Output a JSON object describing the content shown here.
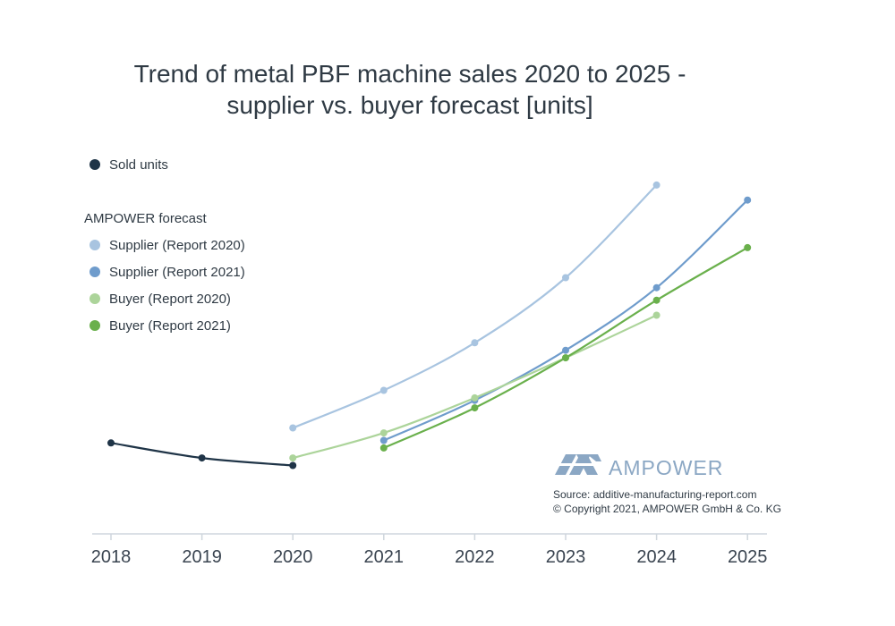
{
  "chart_data": {
    "type": "line",
    "title_lines": [
      "Trend of metal PBF machine sales 2020 to 2025 -",
      "supplier vs. buyer forecast [units]"
    ],
    "x": [
      "2018",
      "2019",
      "2020",
      "2021",
      "2022",
      "2023",
      "2024",
      "2025"
    ],
    "xlabel": "",
    "ylabel": "",
    "ylim": [
      0,
      100
    ],
    "grid": false,
    "legend_placement": "top-left",
    "legend_group_label": "AMPOWER forecast",
    "series": [
      {
        "name": "Sold units",
        "color": "#1f3447",
        "x": [
          "2018",
          "2019",
          "2020"
        ],
        "values": [
          24,
          18,
          15
        ]
      },
      {
        "name": "Supplier (Report 2020)",
        "color": "#a8c4e0",
        "x": [
          "2020",
          "2021",
          "2022",
          "2023",
          "2024"
        ],
        "values": [
          30,
          45,
          64,
          90,
          127
        ]
      },
      {
        "name": "Supplier (Report 2021)",
        "color": "#6f9ccc",
        "x": [
          "2021",
          "2022",
          "2023",
          "2024",
          "2025"
        ],
        "values": [
          25,
          41,
          61,
          86,
          121
        ]
      },
      {
        "name": "Buyer (Report 2020)",
        "color": "#acd49a",
        "x": [
          "2020",
          "2021",
          "2022",
          "2023",
          "2024"
        ],
        "values": [
          18,
          28,
          42,
          58,
          75
        ]
      },
      {
        "name": "Buyer (Report 2021)",
        "color": "#6ab04c",
        "x": [
          "2021",
          "2022",
          "2023",
          "2024",
          "2025"
        ],
        "values": [
          22,
          38,
          58,
          81,
          102
        ]
      }
    ],
    "logo": {
      "text": "AMPOWER",
      "color": "#8ba7c4"
    },
    "source_lines": [
      "Source: additive-manufacturing-report.com",
      "© Copyright 2021, AMPOWER GmbH & Co. KG"
    ]
  }
}
